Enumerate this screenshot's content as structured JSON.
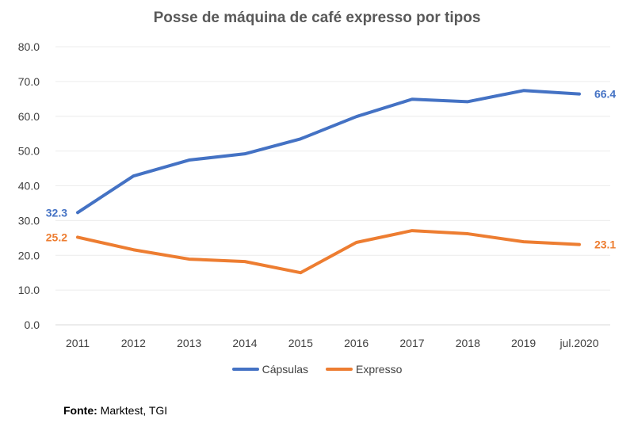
{
  "chart_data": {
    "type": "line",
    "title": "Posse de máquina de café expresso por tipos",
    "categories": [
      "2011",
      "2012",
      "2013",
      "2014",
      "2015",
      "2016",
      "2017",
      "2018",
      "2019",
      "jul.2020"
    ],
    "ylim": [
      0,
      80
    ],
    "yticks": [
      "0.0",
      "10.0",
      "20.0",
      "30.0",
      "40.0",
      "50.0",
      "60.0",
      "70.0",
      "80.0"
    ],
    "grid": true,
    "legend": "bottom",
    "series": [
      {
        "name": "Cápsulas",
        "color": "#4472C4",
        "values": [
          32.3,
          42.8,
          47.4,
          49.2,
          53.5,
          59.9,
          64.9,
          64.2,
          67.4,
          66.4
        ],
        "labels": {
          "first": "32.3",
          "last": "66.4"
        }
      },
      {
        "name": "Expresso",
        "color": "#ED7D31",
        "values": [
          25.2,
          21.6,
          18.9,
          18.2,
          15.0,
          23.7,
          27.1,
          26.2,
          23.9,
          23.1
        ],
        "labels": {
          "first": "25.2",
          "last": "23.1"
        }
      }
    ]
  },
  "source": {
    "label": "Fonte:",
    "text": " Marktest, TGI"
  }
}
